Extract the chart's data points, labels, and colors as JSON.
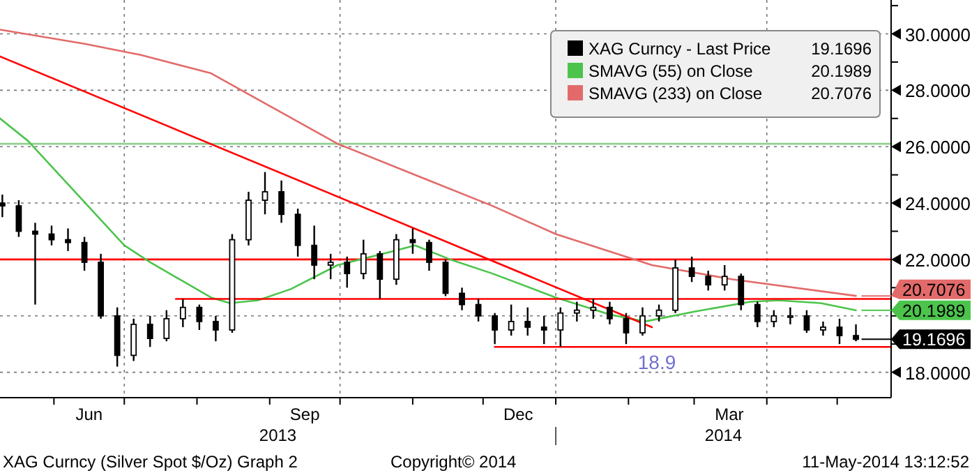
{
  "chart_data": {
    "type": "candlestick",
    "xlim": [
      "2013-05-09",
      "2014-05-24"
    ],
    "ylim": [
      17.1,
      31.2
    ],
    "xticks": [
      {
        "value": "2013-06-01",
        "label": null
      },
      {
        "value": "2013-06-16",
        "label": "Jun"
      },
      {
        "value": "2013-07-01",
        "label": null
      },
      {
        "value": "2013-08-01",
        "label": null
      },
      {
        "value": "2013-09-01",
        "label": null
      },
      {
        "value": "2013-09-16",
        "label": "Sep"
      },
      {
        "value": "2013-10-01",
        "label": null
      },
      {
        "value": "2013-11-01",
        "label": null
      },
      {
        "value": "2013-12-01",
        "label": null
      },
      {
        "value": "2013-12-16",
        "label": "Dec"
      },
      {
        "value": "2014-01-01",
        "label": null
      },
      {
        "value": "2014-02-01",
        "label": null
      },
      {
        "value": "2014-03-01",
        "label": null
      },
      {
        "value": "2014-03-16",
        "label": "Mar"
      },
      {
        "value": "2014-04-01",
        "label": null
      },
      {
        "value": "2014-05-01",
        "label": null
      }
    ],
    "yticks": [
      {
        "value": 18,
        "label": "18.0000"
      },
      {
        "value": 19,
        "label": null
      },
      {
        "value": 20,
        "label": null
      },
      {
        "value": 21,
        "label": null
      },
      {
        "value": 22,
        "label": "22.0000"
      },
      {
        "value": 23,
        "label": null
      },
      {
        "value": 24,
        "label": "24.0000"
      },
      {
        "value": 25,
        "label": null
      },
      {
        "value": 26,
        "label": "26.0000"
      },
      {
        "value": 27,
        "label": null
      },
      {
        "value": 28,
        "label": "28.0000"
      },
      {
        "value": 29,
        "label": null
      },
      {
        "value": 30,
        "label": "30.0000"
      },
      {
        "value": 31,
        "label": null
      }
    ],
    "grid": true,
    "legend": "top right",
    "ref_lines": [
      {
        "axis": "y",
        "value": 22,
        "color": "#ff0000"
      },
      {
        "axis": "y",
        "value": 26.1,
        "color": "#8fd08f"
      }
    ],
    "annotations": [
      {
        "text": "18.9",
        "x": "2014-02-05",
        "y": 18.9
      },
      "2013",
      "2014",
      "XAG Curncy (Silver Spot  $/Oz) Graph 2",
      "Copyright© 2014",
      "11-May-2014 13:12:52"
    ],
    "series": [
      {
        "name": "XAG Curncy - Last Price",
        "color": "#000000",
        "x": [
          "2013-05-10",
          "2013-05-17",
          "2013-05-24",
          "2013-05-31",
          "2013-06-07",
          "2013-06-14",
          "2013-06-21",
          "2013-06-28",
          "2013-07-05",
          "2013-07-12",
          "2013-07-19",
          "2013-07-26",
          "2013-08-02",
          "2013-08-09",
          "2013-08-16",
          "2013-08-23",
          "2013-08-30",
          "2013-09-06",
          "2013-09-13",
          "2013-09-20",
          "2013-09-27",
          "2013-10-04",
          "2013-10-11",
          "2013-10-18",
          "2013-10-25",
          "2013-11-01",
          "2013-11-08",
          "2013-11-15",
          "2013-11-22",
          "2013-11-29",
          "2013-12-06",
          "2013-12-13",
          "2013-12-20",
          "2013-12-27",
          "2014-01-03",
          "2014-01-10",
          "2014-01-17",
          "2014-01-24",
          "2014-01-31",
          "2014-02-07",
          "2014-02-14",
          "2014-02-21",
          "2014-02-28",
          "2014-03-07",
          "2014-03-14",
          "2014-03-21",
          "2014-03-28",
          "2014-04-04",
          "2014-04-11",
          "2014-04-18",
          "2014-04-25",
          "2014-05-02",
          "2014-05-09"
        ],
        "ohlc": [
          [
            24.0,
            24.3,
            23.5,
            23.9
          ],
          [
            23.9,
            24.1,
            22.8,
            23.0
          ],
          [
            23.0,
            23.3,
            20.4,
            22.9
          ],
          [
            22.9,
            23.2,
            22.5,
            22.7
          ],
          [
            22.7,
            23.1,
            22.3,
            22.6
          ],
          [
            22.6,
            22.8,
            21.6,
            21.9
          ],
          [
            21.9,
            22.2,
            19.9,
            20.0
          ],
          [
            20.0,
            20.3,
            18.2,
            18.6
          ],
          [
            18.6,
            19.9,
            18.4,
            19.7
          ],
          [
            19.7,
            20.0,
            18.9,
            19.2
          ],
          [
            19.2,
            20.2,
            19.1,
            19.9
          ],
          [
            19.9,
            20.6,
            19.6,
            20.3
          ],
          [
            20.3,
            20.4,
            19.5,
            19.8
          ],
          [
            19.8,
            20.0,
            19.1,
            19.5
          ],
          [
            19.5,
            22.9,
            19.4,
            22.7
          ],
          [
            22.7,
            24.4,
            22.5,
            24.1
          ],
          [
            24.1,
            25.1,
            23.6,
            24.4
          ],
          [
            24.4,
            24.8,
            23.3,
            23.6
          ],
          [
            23.6,
            23.8,
            22.1,
            22.5
          ],
          [
            22.5,
            23.2,
            21.3,
            21.8
          ],
          [
            21.8,
            22.2,
            21.3,
            21.9
          ],
          [
            21.9,
            22.1,
            21.0,
            21.5
          ],
          [
            21.5,
            22.7,
            21.3,
            22.2
          ],
          [
            22.2,
            22.3,
            20.6,
            21.3
          ],
          [
            21.3,
            22.9,
            21.1,
            22.7
          ],
          [
            22.7,
            23.1,
            22.2,
            22.6
          ],
          [
            22.6,
            22.7,
            21.6,
            21.9
          ],
          [
            21.9,
            22.0,
            20.7,
            20.8
          ],
          [
            20.8,
            21.0,
            20.2,
            20.4
          ],
          [
            20.4,
            20.6,
            19.8,
            20.0
          ],
          [
            20.0,
            20.1,
            19.0,
            19.5
          ],
          [
            19.5,
            20.4,
            19.3,
            19.8
          ],
          [
            19.8,
            20.3,
            19.3,
            19.6
          ],
          [
            19.6,
            20.0,
            19.0,
            19.5
          ],
          [
            19.5,
            20.3,
            18.9,
            20.1
          ],
          [
            20.1,
            20.5,
            19.8,
            20.2
          ],
          [
            20.2,
            20.6,
            19.9,
            20.3
          ],
          [
            20.3,
            20.5,
            19.7,
            19.9
          ],
          [
            19.9,
            20.1,
            19.0,
            19.4
          ],
          [
            19.4,
            20.3,
            19.3,
            20.0
          ],
          [
            20.0,
            20.4,
            19.8,
            20.2
          ],
          [
            20.2,
            22.0,
            20.1,
            21.7
          ],
          [
            21.7,
            22.1,
            21.2,
            21.4
          ],
          [
            21.4,
            21.6,
            20.9,
            21.1
          ],
          [
            21.1,
            21.8,
            20.9,
            21.4
          ],
          [
            21.4,
            21.5,
            20.2,
            20.4
          ],
          [
            20.4,
            20.5,
            19.6,
            19.8
          ],
          [
            19.8,
            20.2,
            19.6,
            20.0
          ],
          [
            20.0,
            20.3,
            19.7,
            20.0
          ],
          [
            20.0,
            20.2,
            19.4,
            19.5
          ],
          [
            19.5,
            19.8,
            19.3,
            19.6
          ],
          [
            19.6,
            19.9,
            19.0,
            19.3
          ],
          [
            19.3,
            19.7,
            19.1,
            19.1696
          ]
        ],
        "value_labels": [
          null,
          null,
          null,
          null,
          null,
          null,
          null,
          null,
          null,
          null,
          null,
          null,
          null,
          null,
          null,
          null,
          null,
          null,
          null,
          null,
          null,
          null,
          null,
          null,
          null,
          null,
          null,
          null,
          null,
          null,
          null,
          null,
          null,
          null,
          null,
          null,
          null,
          null,
          null,
          null,
          null,
          null,
          null,
          null,
          null,
          null,
          null,
          null,
          null,
          null,
          null,
          null,
          "19.1696"
        ]
      },
      {
        "type": "line",
        "name": "SMAVG (55) on Close",
        "color": "#4cc44c",
        "x": [
          "2013-05-09",
          "2013-05-21",
          "2013-07-01",
          "2013-07-12",
          "2013-08-07",
          "2013-08-15",
          "2013-08-27",
          "2013-09-10",
          "2013-09-30",
          "2013-10-24",
          "2013-11-02",
          "2013-11-17",
          "2013-12-05",
          "2014-01-01",
          "2014-01-24",
          "2014-02-08",
          "2014-03-01",
          "2014-03-25",
          "2014-04-06",
          "2014-04-24",
          "2014-05-09"
        ],
        "values": [
          27.0,
          26.2,
          22.5,
          21.9,
          20.65,
          20.45,
          20.55,
          20.95,
          21.8,
          22.3,
          22.5,
          22.0,
          21.5,
          20.65,
          20.05,
          19.8,
          20.15,
          20.5,
          20.55,
          20.45,
          20.1989
        ],
        "value_labels": [
          null,
          null,
          null,
          null,
          null,
          null,
          null,
          null,
          null,
          null,
          null,
          null,
          null,
          null,
          null,
          null,
          null,
          null,
          null,
          null,
          "20.1989"
        ]
      },
      {
        "type": "line",
        "name": "SMAVG (233) on Close",
        "color": "#e36a6a",
        "x": [
          "2013-05-09",
          "2013-06-14",
          "2013-07-08",
          "2013-08-07",
          "2013-09-30",
          "2013-11-05",
          "2013-12-05",
          "2014-01-01",
          "2014-02-11",
          "2014-03-17",
          "2014-05-09"
        ],
        "values": [
          30.15,
          29.65,
          29.25,
          28.6,
          26.1,
          24.9,
          23.9,
          22.9,
          21.8,
          21.3,
          20.7076
        ],
        "value_labels": [
          null,
          null,
          null,
          null,
          null,
          null,
          null,
          null,
          null,
          null,
          "20.7076"
        ]
      },
      {
        "type": "line",
        "color": "#ff0000",
        "x": [
          "2013-05-09",
          "2014-02-11"
        ],
        "values": [
          29.2,
          19.6
        ]
      },
      {
        "type": "line",
        "color": "#ff0000",
        "x": [
          "2013-07-23",
          "2014-05-24"
        ],
        "values": [
          20.6,
          20.6
        ]
      },
      {
        "type": "line",
        "color": "#ff0000",
        "x": [
          "2013-12-06",
          "2014-05-24"
        ],
        "values": [
          18.9,
          18.9
        ]
      }
    ]
  }
}
